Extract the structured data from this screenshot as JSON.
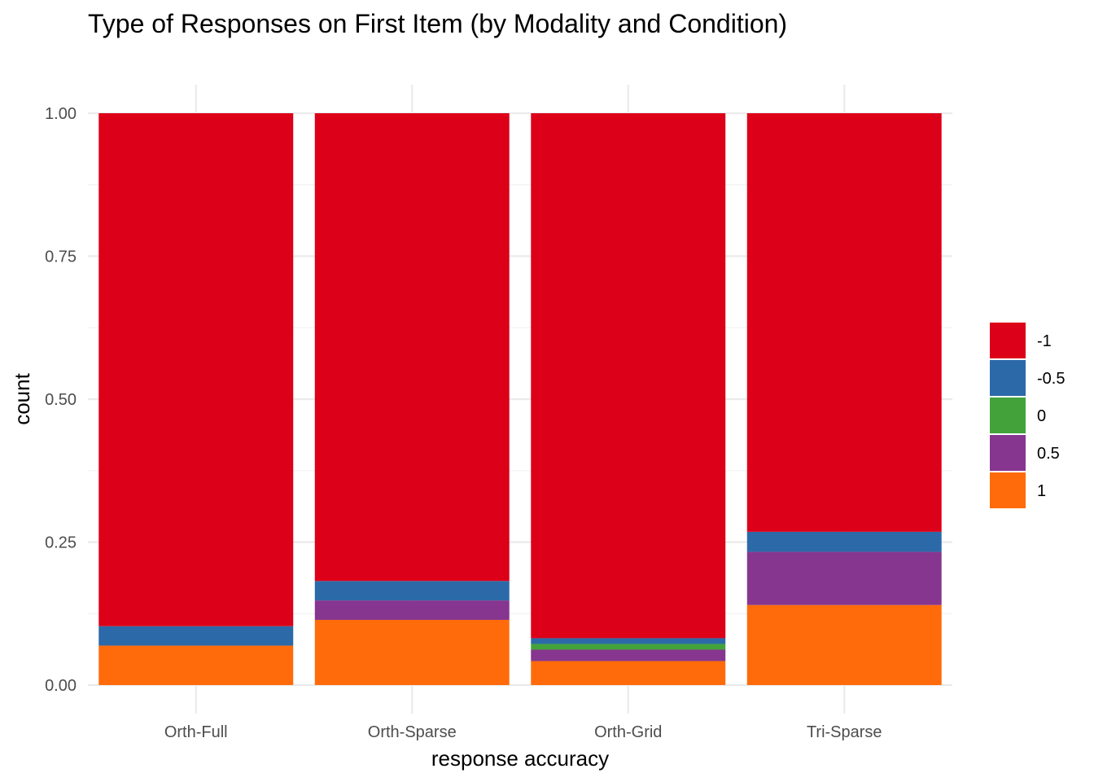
{
  "chart_data": {
    "type": "bar",
    "stacked": true,
    "title": "Type of Responses on First Item (by Modality and Condition)",
    "xlabel": "response accuracy",
    "ylabel": "count",
    "ylim": [
      0,
      1
    ],
    "y_ticks": [
      "0.00",
      "0.25",
      "0.50",
      "0.75",
      "1.00"
    ],
    "grid": true,
    "legend_position": "right",
    "categories": [
      "Orth-Full",
      "Orth-Sparse",
      "Orth-Grid",
      "Tri-Sparse"
    ],
    "series": [
      {
        "name": "1",
        "color": "#FF6B0A",
        "values": [
          0.069,
          0.114,
          0.042,
          0.14
        ]
      },
      {
        "name": "0.5",
        "color": "#86368F",
        "values": [
          0.0,
          0.034,
          0.02,
          0.093
        ]
      },
      {
        "name": "0",
        "color": "#43A33A",
        "values": [
          0.0,
          0.0,
          0.01,
          0.0
        ]
      },
      {
        "name": "-0.5",
        "color": "#2C69A8",
        "values": [
          0.034,
          0.034,
          0.01,
          0.035
        ]
      },
      {
        "name": "-1",
        "color": "#DC0019",
        "values": [
          0.897,
          0.818,
          0.918,
          0.732
        ]
      }
    ],
    "legend_order": [
      "-1",
      "-0.5",
      "0",
      "0.5",
      "1"
    ]
  }
}
